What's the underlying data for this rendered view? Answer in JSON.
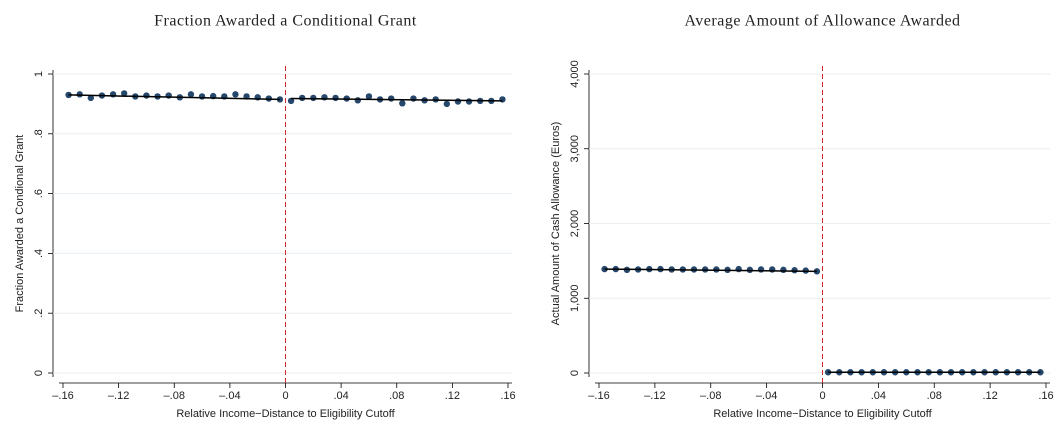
{
  "chart_data": [
    {
      "type": "scatter",
      "title": "Fraction Awarded a Conditional Grant",
      "xlabel": "Relative Income−Distance to Eligibility Cutoff",
      "ylabel": "Fraction Awarded a Condional Grant",
      "x": [
        -0.156,
        -0.148,
        -0.14,
        -0.132,
        -0.124,
        -0.116,
        -0.108,
        -0.1,
        -0.092,
        -0.084,
        -0.076,
        -0.068,
        -0.06,
        -0.052,
        -0.044,
        -0.036,
        -0.028,
        -0.02,
        -0.012,
        -0.004,
        0.004,
        0.012,
        0.02,
        0.028,
        0.036,
        0.044,
        0.052,
        0.06,
        0.068,
        0.076,
        0.084,
        0.092,
        0.1,
        0.108,
        0.116,
        0.124,
        0.132,
        0.14,
        0.148,
        0.156
      ],
      "values": [
        0.93,
        0.932,
        0.92,
        0.928,
        0.932,
        0.935,
        0.925,
        0.928,
        0.925,
        0.928,
        0.922,
        0.932,
        0.925,
        0.926,
        0.925,
        0.932,
        0.925,
        0.922,
        0.918,
        0.915,
        0.91,
        0.92,
        0.92,
        0.922,
        0.92,
        0.918,
        0.912,
        0.925,
        0.915,
        0.918,
        0.902,
        0.918,
        0.912,
        0.915,
        0.9,
        0.908,
        0.908,
        0.91,
        0.91,
        0.915
      ],
      "color": "#24476b",
      "fit": [
        {
          "x": [
            -0.156,
            -0.004
          ],
          "values": [
            0.93,
            0.915
          ]
        },
        {
          "x": [
            0.004,
            0.156
          ],
          "values": [
            0.918,
            0.91
          ]
        }
      ],
      "cutoff": 0,
      "xlim": [
        -0.16,
        0.16
      ],
      "xticks": [
        {
          "value": -0.16,
          "label": "–.16"
        },
        {
          "value": -0.12,
          "label": "–.12"
        },
        {
          "value": -0.08,
          "label": "–.08"
        },
        {
          "value": -0.04,
          "label": "–.04"
        },
        0,
        {
          "value": 0.04,
          "label": ".04"
        },
        {
          "value": 0.08,
          "label": ".08"
        },
        {
          "value": 0.12,
          "label": ".12"
        },
        {
          "value": 0.16,
          "label": ".16"
        }
      ],
      "ylim": [
        0,
        1
      ],
      "yticks": [
        0,
        {
          "value": 0.2,
          "label": ".2"
        },
        {
          "value": 0.4,
          "label": ".4"
        },
        {
          "value": 0.6,
          "label": ".6"
        },
        {
          "value": 0.8,
          "label": ".8"
        },
        1
      ],
      "grid": true
    },
    {
      "type": "scatter",
      "title": "Average Amount of Allowance Awarded",
      "xlabel": "Relative Income−Distance to Eligibility Cutoff",
      "ylabel": "Actual Amount of Cash Allowance (Euros)",
      "x": [
        -0.156,
        -0.148,
        -0.14,
        -0.132,
        -0.124,
        -0.116,
        -0.108,
        -0.1,
        -0.092,
        -0.084,
        -0.076,
        -0.068,
        -0.06,
        -0.052,
        -0.044,
        -0.036,
        -0.028,
        -0.02,
        -0.012,
        -0.004,
        0.004,
        0.012,
        0.02,
        0.028,
        0.036,
        0.044,
        0.052,
        0.06,
        0.068,
        0.076,
        0.084,
        0.092,
        0.1,
        0.108,
        0.116,
        0.124,
        0.132,
        0.14,
        0.148,
        0.156
      ],
      "values": [
        1390,
        1390,
        1380,
        1385,
        1390,
        1390,
        1385,
        1385,
        1385,
        1385,
        1385,
        1380,
        1390,
        1380,
        1385,
        1385,
        1380,
        1375,
        1370,
        1360,
        10,
        10,
        10,
        10,
        10,
        10,
        10,
        10,
        10,
        10,
        10,
        10,
        10,
        10,
        10,
        10,
        10,
        10,
        10,
        10
      ],
      "color": "#24476b",
      "fit": [
        {
          "x": [
            -0.156,
            -0.004
          ],
          "values": [
            1390,
            1360
          ]
        },
        {
          "x": [
            0.004,
            0.156
          ],
          "values": [
            10,
            10
          ]
        }
      ],
      "cutoff": 0,
      "xlim": [
        -0.16,
        0.16
      ],
      "xticks": [
        {
          "value": -0.16,
          "label": "–.16"
        },
        {
          "value": -0.12,
          "label": "–.12"
        },
        {
          "value": -0.08,
          "label": "–.08"
        },
        {
          "value": -0.04,
          "label": "–.04"
        },
        0,
        {
          "value": 0.04,
          "label": ".04"
        },
        {
          "value": 0.08,
          "label": ".08"
        },
        {
          "value": 0.12,
          "label": ".12"
        },
        {
          "value": 0.16,
          "label": ".16"
        }
      ],
      "ylim": [
        0,
        4000
      ],
      "yticks": [
        0,
        {
          "value": 1000,
          "label": "1,000"
        },
        {
          "value": 2000,
          "label": "2,000"
        },
        {
          "value": 3000,
          "label": "3,000"
        },
        {
          "value": 4000,
          "label": "4,000"
        }
      ],
      "grid": true
    }
  ]
}
